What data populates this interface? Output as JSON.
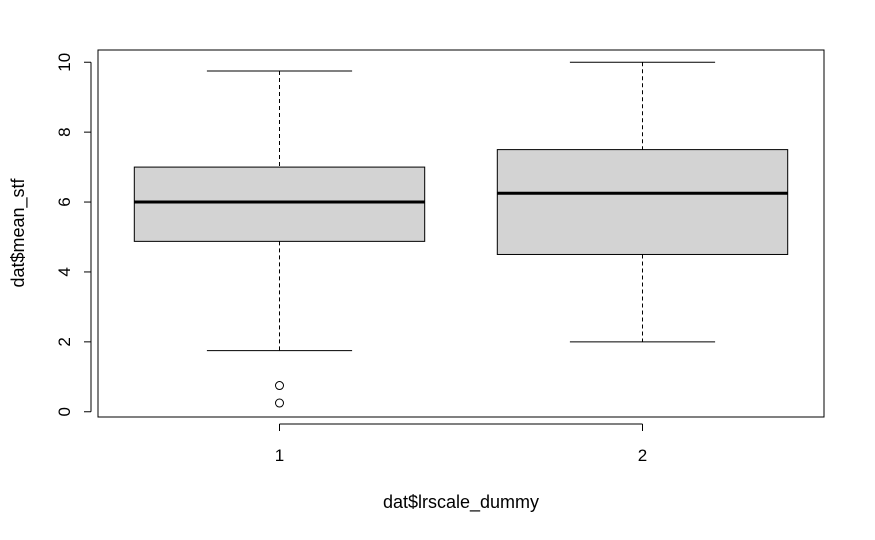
{
  "chart_data": {
    "type": "boxplot",
    "xlabel": "dat$lrscale_dummy",
    "ylabel": "dat$mean_stf",
    "ylim": [
      -0.15,
      10.35
    ],
    "y_ticks": [
      0,
      2,
      4,
      6,
      8,
      10
    ],
    "categories": [
      "1",
      "2"
    ],
    "boxes": [
      {
        "category": "1",
        "whisker_low": 1.75,
        "q1": 4.875,
        "median": 6.0,
        "q3": 7.0,
        "whisker_high": 9.75,
        "outliers": [
          0.25,
          0.75
        ]
      },
      {
        "category": "2",
        "whisker_low": 2.0,
        "q1": 4.5,
        "median": 6.25,
        "q3": 7.5,
        "whisker_high": 10.0,
        "outliers": []
      }
    ],
    "box_fill": "#d3d3d3",
    "grid": false,
    "legend": "none"
  }
}
